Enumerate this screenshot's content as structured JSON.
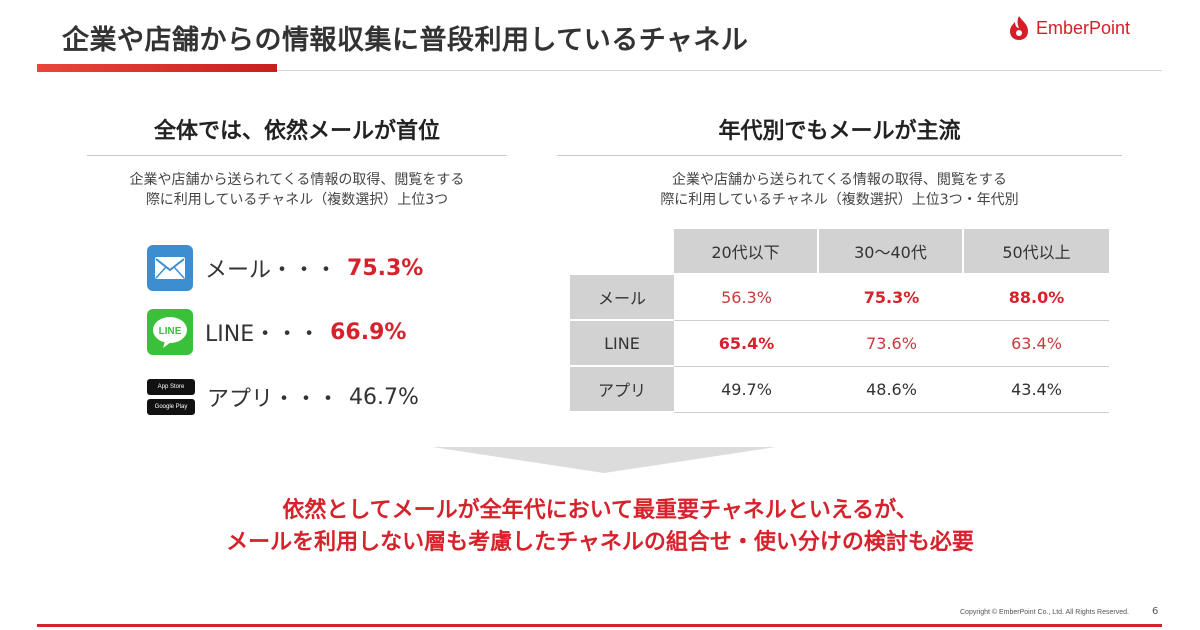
{
  "header": {
    "title": "企業や店舗からの情報収集に普段利用しているチャネル",
    "logo_text": "EmberPoint"
  },
  "left": {
    "heading": "全体では、依然メールが首位",
    "subtitle_line1": "企業や店舗から送られてくる情報の取得、閲覧をする",
    "subtitle_line2": "際に利用しているチャネル（複数選択）上位3つ",
    "channels": [
      {
        "icon": "mail-icon",
        "label": "メール・・・",
        "value": "75.3%"
      },
      {
        "icon": "line-icon",
        "label": "LINE・・・",
        "value": "66.9%",
        "icon_text": "LINE"
      },
      {
        "icon": "app-store-icon",
        "label": "アプリ・・・",
        "value": "46.7%",
        "badge1": "App Store",
        "badge2": "Google Play"
      }
    ]
  },
  "right": {
    "heading": "年代別でもメールが主流",
    "subtitle_line1": "企業や店舗から送られてくる情報の取得、閲覧をする",
    "subtitle_line2": "際に利用しているチャネル（複数選択）上位3つ・年代別",
    "table": {
      "columns": [
        "20代以下",
        "30〜40代",
        "50代以上"
      ],
      "rows": [
        {
          "label": "メール",
          "values": [
            "56.3%",
            "75.3%",
            "88.0%"
          ]
        },
        {
          "label": "LINE",
          "values": [
            "65.4%",
            "73.6%",
            "63.4%"
          ]
        },
        {
          "label": "アプリ",
          "values": [
            "49.7%",
            "48.6%",
            "43.4%"
          ]
        }
      ]
    }
  },
  "conclusion": {
    "line1": "依然としてメールが全年代において最重要チャネルといえるが、",
    "line2": "メールを利用しない層も考慮したチャネルの組合せ・使い分けの検討も必要"
  },
  "footer": {
    "copyright": "Copyright © EmberPoint Co., Ltd. All Rights Reserved.",
    "page": "6"
  },
  "colors": {
    "accent_red": "#d6222b",
    "mail_blue": "#3d8ed1",
    "line_green": "#3ac139"
  }
}
